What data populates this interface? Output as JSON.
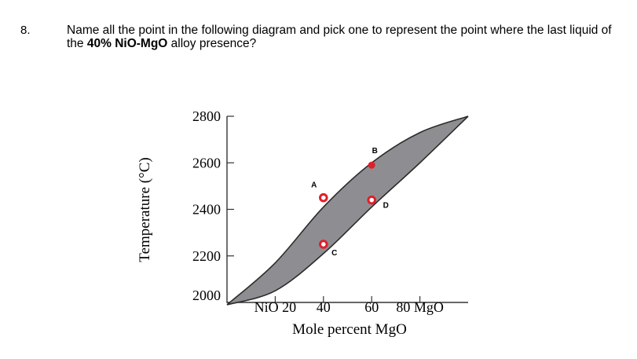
{
  "question": {
    "number": "8.",
    "text_before": "Name all the point in the following diagram and pick one to represent the point where the last liquid of the ",
    "text_bold": "40% NiO-MgO",
    "text_after": " alloy presence?"
  },
  "colors": {
    "two_phase_fill": "#8e8e92",
    "outline": "#2b2b2b",
    "point": "#e0202a"
  },
  "chart_data": {
    "type": "phase-diagram",
    "xlabel": "Mole percent MgO",
    "ylabel": "Temperature (°C)",
    "x_ticks": [
      {
        "value": 20,
        "label": "NiO 20"
      },
      {
        "value": 40,
        "label": "40"
      },
      {
        "value": 60,
        "label": "60"
      },
      {
        "value": 80,
        "label": "80  MgO"
      }
    ],
    "y_ticks": [
      {
        "value": 2000,
        "label": "2000"
      },
      {
        "value": 2200,
        "label": "2200"
      },
      {
        "value": 2400,
        "label": "2400"
      },
      {
        "value": 2600,
        "label": "2600"
      },
      {
        "value": 2800,
        "label": "2800"
      }
    ],
    "xlim": [
      0,
      100
    ],
    "ylim": [
      2000,
      2800
    ],
    "grid": false,
    "liquidus": [
      [
        0,
        1990
      ],
      [
        20,
        2170
      ],
      [
        40,
        2410
      ],
      [
        60,
        2600
      ],
      [
        80,
        2730
      ],
      [
        100,
        2800
      ]
    ],
    "solidus": [
      [
        0,
        1990
      ],
      [
        20,
        2050
      ],
      [
        40,
        2210
      ],
      [
        60,
        2410
      ],
      [
        80,
        2600
      ],
      [
        100,
        2800
      ]
    ],
    "points": [
      {
        "label": "A",
        "x": 40,
        "y": 2450,
        "style": "hollow"
      },
      {
        "label": "B",
        "x": 60,
        "y": 2590,
        "style": "solid"
      },
      {
        "label": "C",
        "x": 40,
        "y": 2250,
        "style": "hollow"
      },
      {
        "label": "D",
        "x": 60,
        "y": 2440,
        "style": "hollow"
      }
    ]
  }
}
